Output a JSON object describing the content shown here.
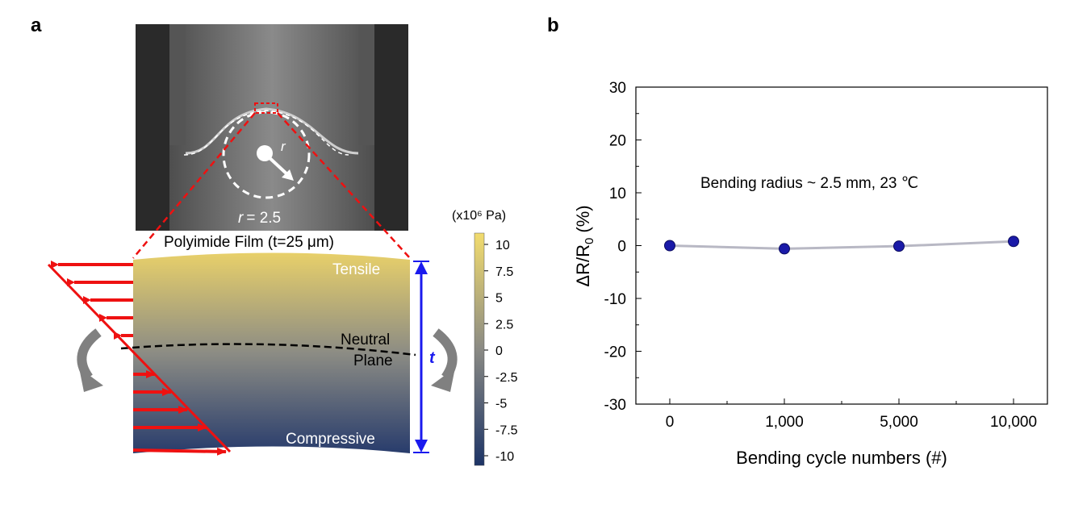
{
  "panel_a": {
    "letter": "a",
    "photo_radius_label_prefix": "r",
    "photo_radius_label_value": "= 2.5",
    "photo_r_symbol": "r",
    "film_title": "Polyimide Film (t=25 μm)",
    "tensile_label": "Tensile",
    "neutral_label_1": "Neutral",
    "neutral_label_2": "Plane",
    "compressive_label": "Compressive",
    "thickness_symbol": "t",
    "colorbar": {
      "unit_label": "(x10⁶ Pa)",
      "ticks": [
        "10",
        "7.5",
        "5",
        "2.5",
        "0",
        "-2.5",
        "-5",
        "-7.5",
        "-10"
      ],
      "top_color": "#f2dc6e",
      "bottom_color": "#1d3466"
    },
    "colors": {
      "arrows": "#ee1111",
      "thickness_arrow": "#1a1aee",
      "dashed_outline": "#ee1111",
      "rotation_arrows": "#808080"
    }
  },
  "panel_b": {
    "letter": "b",
    "annotation": "Bending radius ~ 2.5 mm, 23 ℃"
  },
  "chart_data": {
    "type": "line",
    "categories": [
      "0",
      "1,000",
      "5,000",
      "10,000"
    ],
    "values": [
      0.0,
      -0.6,
      -0.1,
      0.8
    ],
    "xlabel": "Bending cycle numbers (#)",
    "ylabel_main": "ΔR/R",
    "ylabel_sub": "0",
    "ylabel_unit": " (%)",
    "ylim": [
      -30,
      30
    ],
    "yticks": [
      -30,
      -20,
      -10,
      0,
      10,
      20,
      30
    ],
    "grid": false,
    "marker_color": "#1a1aa8",
    "line_color": "#b8b8c4"
  }
}
